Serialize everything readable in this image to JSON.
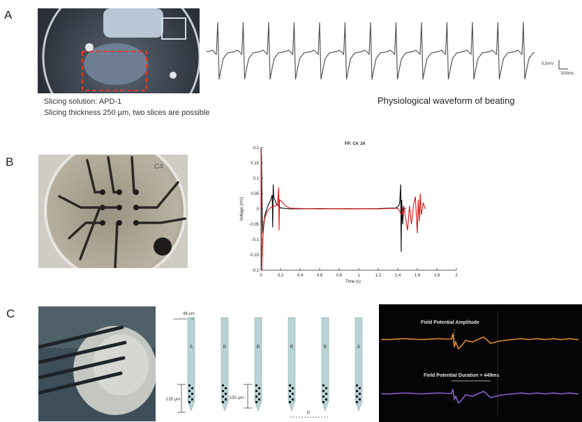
{
  "panels": {
    "a": {
      "letter": "A",
      "caption_lines": [
        "Slicing solution: APD-1",
        "Slicing thickness 250 µm, two slices are possible"
      ],
      "waveform_caption": "Physiological waveform of beating",
      "scale_voltage": "0.5mV",
      "scale_time": "500ms"
    },
    "b": {
      "letter": "B",
      "electrode_label": "C4"
    },
    "c": {
      "letter": "C",
      "probe": {
        "pitch_label": "48 µm",
        "shank_labels": [
          "A",
          "B",
          "B",
          "B",
          "B",
          "A"
        ],
        "depth_label_1": "135 µm",
        "depth_label_2": "150 µm",
        "spacing_label": "P"
      },
      "trace_panel": {
        "amplitude_label": "Field Potential Amplitude",
        "duration_label": "Field Potential Duration = 449ms",
        "amplitude_color": "#e08a2c",
        "duration_color": "#8a5fd0"
      }
    }
  },
  "chart_data": {
    "type": "line",
    "title": "FP: C4_24",
    "xlabel": "Time (s)",
    "ylabel": "Voltage (mV)",
    "xlim": [
      0,
      2
    ],
    "ylim": [
      -0.2,
      0.2
    ],
    "x_ticks": [
      "0",
      "0.2",
      "0.4",
      "0.6",
      "0.8",
      "1",
      "1.2",
      "1.4",
      "1.6",
      "1.8",
      "2"
    ],
    "y_ticks": [
      "0.2",
      "0.15",
      "0.1",
      "0.05",
      "0",
      "-0.05",
      "-0.1",
      "-0.15",
      "-0.2"
    ],
    "grid": false,
    "series": [
      {
        "color": "#000000",
        "points": [
          [
            0,
            0
          ],
          [
            0.005,
            0.18
          ],
          [
            0.012,
            -0.02
          ],
          [
            0.02,
            -0.08
          ],
          [
            0.04,
            -0.02
          ],
          [
            0.07,
            0.01
          ],
          [
            0.1,
            0.03
          ],
          [
            0.115,
            0.045
          ],
          [
            0.12,
            -0.06
          ],
          [
            0.125,
            0.08
          ],
          [
            0.13,
            0.04
          ],
          [
            0.16,
            0.015
          ],
          [
            0.2,
            0.003
          ],
          [
            0.3,
            0
          ],
          [
            0.6,
            0.001
          ],
          [
            0.9,
            0
          ],
          [
            1.2,
            0.001
          ],
          [
            1.38,
            0.003
          ],
          [
            1.41,
            0.01
          ],
          [
            1.42,
            0.02
          ],
          [
            1.43,
            0.08
          ],
          [
            1.435,
            -0.14
          ],
          [
            1.44,
            0.03
          ],
          [
            1.45,
            -0.05
          ],
          [
            1.46,
            0.005
          ],
          [
            1.48,
            0
          ]
        ]
      },
      {
        "color": "#dd1111",
        "points": [
          [
            0,
            0
          ],
          [
            0.003,
            0.2
          ],
          [
            0.008,
            -0.2
          ],
          [
            0.015,
            -0.12
          ],
          [
            0.03,
            -0.04
          ],
          [
            0.06,
            -0.01
          ],
          [
            0.1,
            0.005
          ],
          [
            0.15,
            0.01
          ],
          [
            0.17,
            0.015
          ],
          [
            0.18,
            0.07
          ],
          [
            0.185,
            -0.07
          ],
          [
            0.19,
            0.03
          ],
          [
            0.21,
            0.025
          ],
          [
            0.25,
            0.01
          ],
          [
            0.3,
            0.002
          ],
          [
            0.6,
            0
          ],
          [
            0.9,
            0.001
          ],
          [
            1.2,
            0
          ],
          [
            1.4,
            0.002
          ],
          [
            1.44,
            -0.02
          ],
          [
            1.46,
            0.01
          ],
          [
            1.5,
            -0.07
          ],
          [
            1.52,
            0.01
          ],
          [
            1.54,
            -0.05
          ],
          [
            1.56,
            0.01
          ],
          [
            1.58,
            0.04
          ],
          [
            1.6,
            -0.08
          ],
          [
            1.61,
            0.03
          ],
          [
            1.62,
            -0.04
          ],
          [
            1.63,
            0.05
          ],
          [
            1.64,
            -0.02
          ],
          [
            1.66,
            0.02
          ],
          [
            1.68,
            0
          ]
        ]
      }
    ]
  }
}
